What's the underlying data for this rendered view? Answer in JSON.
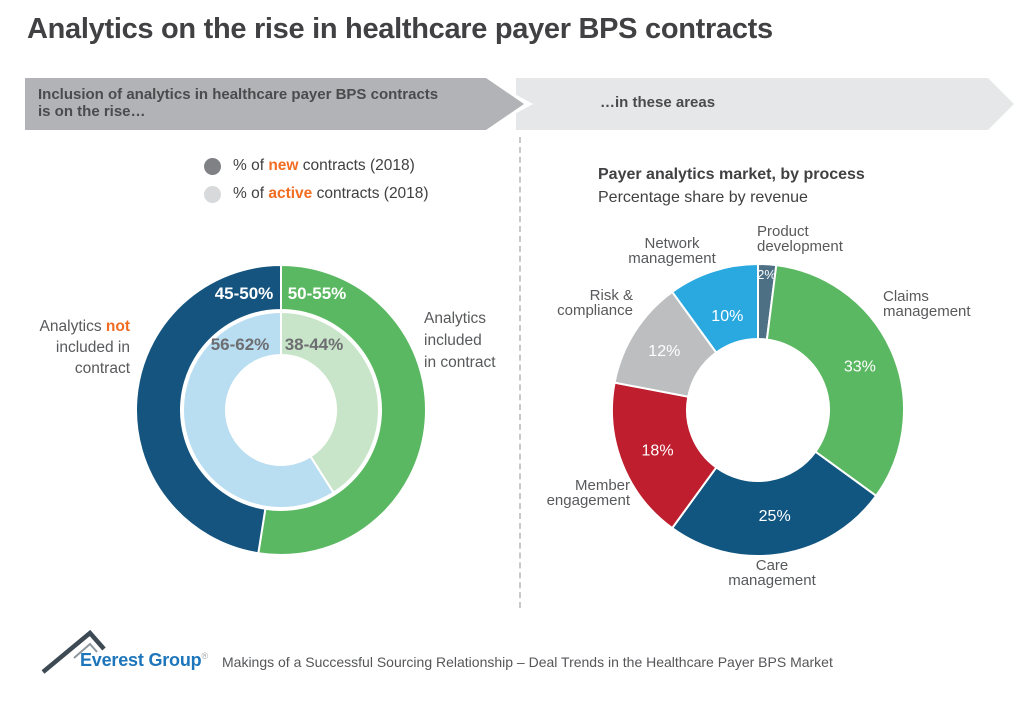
{
  "page": {
    "title": "Analytics on the rise in healthcare payer BPS contracts"
  },
  "banner": {
    "left_text_line1": "Inclusion of analytics in healthcare payer BPS contracts",
    "left_text_line2": "is on the rise…",
    "right_text": "…in these areas",
    "left_bg": "#b1b3b6",
    "right_bg": "#e6e7e8"
  },
  "legend": {
    "highlight_color": "#f26d21",
    "items": [
      {
        "prefix": "% of ",
        "highlight": "new",
        "suffix": " contracts (2018)",
        "dot_color": "#808184"
      },
      {
        "prefix": "% of ",
        "highlight": "active",
        "suffix": " contracts (2018)",
        "dot_color": "#d8d9da"
      }
    ]
  },
  "chart_data": [
    {
      "type": "donut-nested",
      "description": "Inclusion of analytics in healthcare payer BPS contracts, nested donut; outer ring = new contracts 2018, inner ring = active contracts 2018; clockwise from top",
      "rings": [
        {
          "name": "% of new contracts (2018)",
          "segments": [
            {
              "label": "Analytics included in contract",
              "value_range": "50-55%",
              "value": 52.5,
              "color": "#5bb862"
            },
            {
              "label": "Analytics not included in contract",
              "value_range": "45-50%",
              "value": 47.5,
              "color": "#14547f"
            }
          ]
        },
        {
          "name": "% of active contracts (2018)",
          "segments": [
            {
              "label": "Analytics included in contract",
              "value_range": "38-44%",
              "value": 41,
              "color": "#c9e5c9"
            },
            {
              "label": "Analytics not included in contract",
              "value_range": "56-62%",
              "value": 59,
              "color": "#b9ddf1"
            }
          ]
        }
      ],
      "left_label": {
        "pre": "Analytics ",
        "em": "not",
        "line2": "included in",
        "line3": "contract"
      },
      "right_label": {
        "line1": "Analytics",
        "line2": "included",
        "line3": "in contract"
      }
    },
    {
      "type": "donut",
      "title": "Payer analytics market, by process",
      "subtitle": "Percentage share by revenue",
      "description": "clockwise from top",
      "segments": [
        {
          "label": "Product development",
          "value": 2,
          "color": "#4e7085"
        },
        {
          "label": "Claims management",
          "value": 33,
          "color": "#5bb862"
        },
        {
          "label": "Care management",
          "value": 25,
          "color": "#115680"
        },
        {
          "label": "Member engagement",
          "value": 18,
          "color": "#be1e2d"
        },
        {
          "label": "Risk & compliance",
          "value": 12,
          "color": "#bcbec0"
        },
        {
          "label": "Network management",
          "value": 10,
          "color": "#29a9e0"
        }
      ]
    }
  ],
  "footer": {
    "brand": "Everest Group",
    "reg": "®",
    "text": "Makings of a Successful Sourcing Relationship – Deal Trends in the Healthcare Payer BPS Market"
  }
}
